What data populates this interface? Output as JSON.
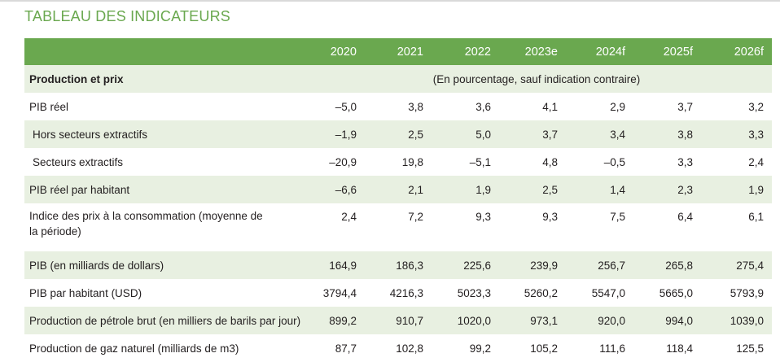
{
  "title": "TABLEAU DES INDICATEURS",
  "table": {
    "years": [
      "2020",
      "2021",
      "2022",
      "2023e",
      "2024f",
      "2025f",
      "2026f"
    ],
    "section": {
      "label": "Production et prix",
      "note": "(En pourcentage, sauf indication contraire)"
    },
    "rows": [
      {
        "label": "PIB réel",
        "values": [
          "–5,0",
          "3,8",
          "3,6",
          "4,1",
          "2,9",
          "3,7",
          "3,2"
        ]
      },
      {
        "label": "Hors secteurs extractifs",
        "values": [
          "–1,9",
          "2,5",
          "5,0",
          "3,7",
          "3,4",
          "3,8",
          "3,3"
        ]
      },
      {
        "label": "Secteurs extractifs",
        "values": [
          "–20,9",
          "19,8",
          "–5,1",
          "4,8",
          "–0,5",
          "3,3",
          "2,4"
        ]
      },
      {
        "label": "PIB réel par habitant",
        "values": [
          "–6,6",
          "2,1",
          "1,9",
          "2,5",
          "1,4",
          "2,3",
          "1,9"
        ]
      },
      {
        "label": "Indice des prix à la consommation (moyenne de la période)",
        "values": [
          "2,4",
          "7,2",
          "9,3",
          "9,3",
          "7,5",
          "6,4",
          "6,1"
        ]
      },
      {
        "label": "PIB (en milliards de dollars)",
        "values": [
          "164,9",
          "186,3",
          "225,6",
          "239,9",
          "256,7",
          "265,8",
          "275,4"
        ]
      },
      {
        "label": "PIB par habitant (USD)",
        "values": [
          "3794,4",
          "4216,3",
          "5023,3",
          "5260,2",
          "5547,0",
          "5665,0",
          "5793,9"
        ]
      },
      {
        "label": "Production de pétrole brut (en milliers de barils par jour)",
        "values": [
          "899,2",
          "910,7",
          "1020,0",
          "973,1",
          "920,0",
          "994,0",
          "1039,0"
        ]
      },
      {
        "label": "Production de gaz naturel (milliards de m3)",
        "values": [
          "87,7",
          "102,8",
          "99,2",
          "105,2",
          "111,6",
          "118,4",
          "125,5"
        ]
      }
    ]
  }
}
